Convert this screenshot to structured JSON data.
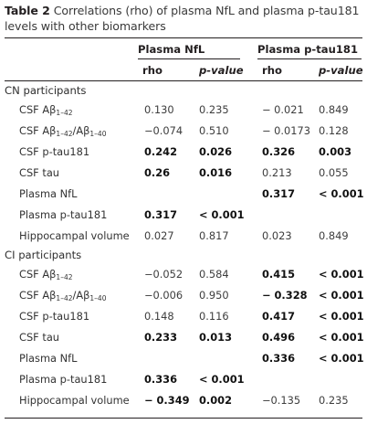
{
  "caption": {
    "label": "Table 2",
    "text": "Correlations (rho) of plasma NfL and plasma p-tau181 levels with other biomarkers"
  },
  "headers": {
    "group1": "Plasma NfL",
    "group2": "Plasma p-tau181",
    "rho": "rho",
    "pvalue": "p-value"
  },
  "sections": [
    {
      "title": "CN participants",
      "rows": [
        {
          "label": "CSF Aβ1–42",
          "nfl_rho": "0.130",
          "nfl_p": "0.235",
          "pt_rho": "− 0.021",
          "pt_p": "0.849",
          "bold": [
            false,
            false,
            false,
            false
          ]
        },
        {
          "label": "CSF Aβ1–42/Aβ1–40",
          "nfl_rho": "−0.074",
          "nfl_p": "0.510",
          "pt_rho": "− 0.0173",
          "pt_p": "0.128",
          "bold": [
            false,
            false,
            false,
            false
          ]
        },
        {
          "label": "CSF p-tau181",
          "nfl_rho": "0.242",
          "nfl_p": "0.026",
          "pt_rho": "0.326",
          "pt_p": "0.003",
          "bold": [
            true,
            true,
            true,
            true
          ]
        },
        {
          "label": "CSF tau",
          "nfl_rho": "0.26",
          "nfl_p": "0.016",
          "pt_rho": "0.213",
          "pt_p": "0.055",
          "bold": [
            true,
            true,
            false,
            false
          ]
        },
        {
          "label": "Plasma NfL",
          "nfl_rho": "",
          "nfl_p": "",
          "pt_rho": "0.317",
          "pt_p": "< 0.001",
          "bold": [
            false,
            false,
            true,
            true
          ]
        },
        {
          "label": "Plasma p-tau181",
          "nfl_rho": "0.317",
          "nfl_p": "< 0.001",
          "pt_rho": "",
          "pt_p": "",
          "bold": [
            true,
            true,
            false,
            false
          ]
        },
        {
          "label": "Hippocampal volume",
          "nfl_rho": "0.027",
          "nfl_p": "0.817",
          "pt_rho": "0.023",
          "pt_p": "0.849",
          "bold": [
            false,
            false,
            false,
            false
          ]
        }
      ]
    },
    {
      "title": "CI participants",
      "rows": [
        {
          "label": "CSF Aβ1–42",
          "nfl_rho": "−0.052",
          "nfl_p": "0.584",
          "pt_rho": "0.415",
          "pt_p": "< 0.001",
          "bold": [
            false,
            false,
            true,
            true
          ]
        },
        {
          "label": "CSF Aβ1–42/Aβ1–40",
          "nfl_rho": "−0.006",
          "nfl_p": "0.950",
          "pt_rho": "− 0.328",
          "pt_p": "< 0.001",
          "bold": [
            false,
            false,
            true,
            true
          ]
        },
        {
          "label": "CSF p-tau181",
          "nfl_rho": "0.148",
          "nfl_p": "0.116",
          "pt_rho": "0.417",
          "pt_p": "< 0.001",
          "bold": [
            false,
            false,
            true,
            true
          ]
        },
        {
          "label": "CSF tau",
          "nfl_rho": "0.233",
          "nfl_p": "0.013",
          "pt_rho": "0.496",
          "pt_p": "< 0.001",
          "bold": [
            true,
            true,
            true,
            true
          ]
        },
        {
          "label": "Plasma NfL",
          "nfl_rho": "",
          "nfl_p": "",
          "pt_rho": "0.336",
          "pt_p": "< 0.001",
          "bold": [
            false,
            false,
            true,
            true
          ]
        },
        {
          "label": "Plasma p-tau181",
          "nfl_rho": "0.336",
          "nfl_p": "< 0.001",
          "pt_rho": "",
          "pt_p": "",
          "bold": [
            true,
            true,
            false,
            false
          ]
        },
        {
          "label": "Hippocampal volume",
          "nfl_rho": "− 0.349",
          "nfl_p": "0.002",
          "pt_rho": "−0.135",
          "pt_p": "0.235",
          "bold": [
            true,
            true,
            false,
            false
          ]
        }
      ]
    }
  ]
}
